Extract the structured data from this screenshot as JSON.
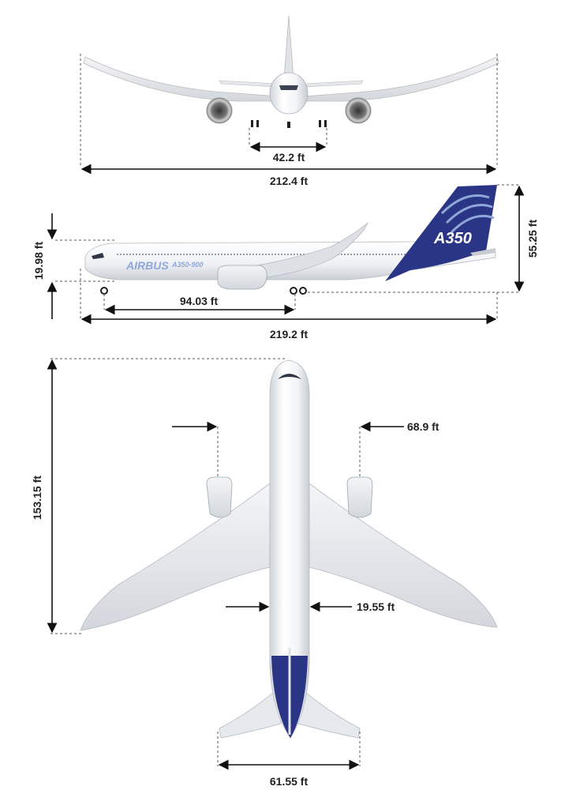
{
  "dimensions": {
    "main_gear_track": "42.2 ft",
    "wingspan": "212.4 ft",
    "height": "55.25 ft",
    "fuselage_ground_clearance": "19.98 ft",
    "wheelbase": "94.03 ft",
    "length": "219.2 ft",
    "wing_root_to_tip_length": "153.15 ft",
    "engine_spacing": "68.9 ft",
    "fuselage_width": "19.55 ft",
    "tailplane_span": "61.55 ft"
  },
  "livery": {
    "brand": "AIRBUS",
    "model": "A350-900",
    "tail_text": "A350",
    "colors": {
      "accent_blue": "#2a3585",
      "tail_light_blue": "#8fa6d8",
      "body": "#eef0f3",
      "dim_text": "#222222"
    }
  }
}
